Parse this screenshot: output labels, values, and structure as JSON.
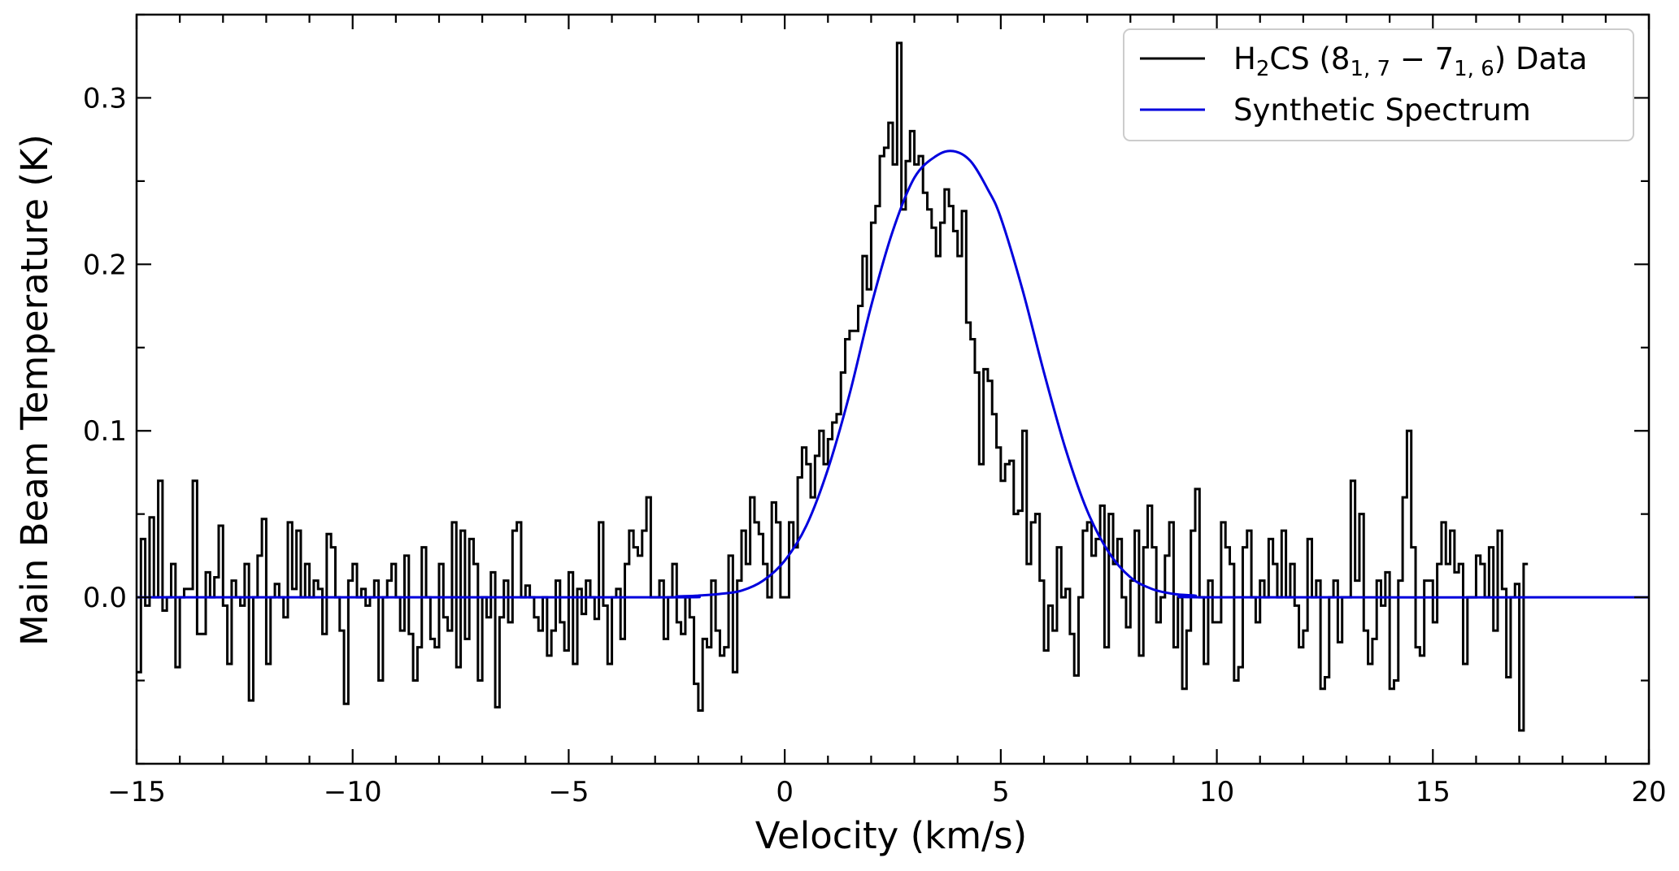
{
  "chart_data": {
    "type": "line",
    "title": "",
    "xlabel": "Velocity (km/s)",
    "ylabel": "Main Beam Temperature (K)",
    "xlim": [
      -15,
      20
    ],
    "ylim": [
      -0.1,
      0.35
    ],
    "xticks": [
      -15,
      -10,
      -5,
      0,
      5,
      10,
      15,
      20
    ],
    "xtick_labels": [
      "−15",
      "−10",
      "−5",
      "0",
      "5",
      "10",
      "15",
      "20"
    ],
    "yticks": [
      0.0,
      0.1,
      0.2,
      0.3
    ],
    "ytick_labels": [
      "0.0",
      "0.1",
      "0.2",
      "0.3"
    ],
    "x_minor_step": 1,
    "y_minor_step": 0.05,
    "grid": false,
    "legend_position": "top-right",
    "series": [
      {
        "name": "H2CS (8_{1,7} − 7_{1,6}) Data",
        "legend": {
          "base": "H",
          "sub1": "2",
          "mid": "CS (8",
          "sub2": "1, 7",
          "dash": " − 7",
          "sub3": "1, 6",
          "end": ") Data"
        },
        "style": "step",
        "color": "#000000",
        "x_start": -15.0,
        "x_step": 0.1,
        "values": [
          -0.045,
          0.035,
          -0.005,
          0.048,
          0.0,
          0.07,
          -0.008,
          0.0,
          0.02,
          -0.042,
          0.0,
          0.005,
          0.005,
          0.07,
          -0.022,
          -0.022,
          0.015,
          0.0,
          0.012,
          0.043,
          -0.005,
          -0.04,
          0.01,
          0.0,
          -0.005,
          0.02,
          -0.062,
          0.0,
          0.025,
          0.047,
          -0.04,
          0.0,
          0.008,
          0.0,
          -0.012,
          0.045,
          0.005,
          0.04,
          0.0,
          0.02,
          0.0,
          0.01,
          0.005,
          -0.022,
          0.038,
          0.03,
          0.0,
          -0.02,
          -0.064,
          0.01,
          0.02,
          0.0,
          0.005,
          -0.005,
          0.0,
          0.01,
          -0.05,
          0.0,
          0.01,
          0.02,
          0.0,
          -0.02,
          0.025,
          -0.022,
          -0.05,
          -0.03,
          0.03,
          0.0,
          -0.025,
          -0.03,
          0.02,
          -0.012,
          -0.02,
          0.045,
          -0.042,
          0.04,
          -0.025,
          0.035,
          0.02,
          -0.05,
          0.0,
          -0.012,
          0.015,
          -0.066,
          -0.012,
          0.01,
          -0.015,
          0.04,
          0.045,
          0.0,
          0.007,
          0.0,
          -0.012,
          -0.02,
          0.0,
          -0.035,
          -0.02,
          0.01,
          -0.015,
          -0.032,
          0.015,
          -0.04,
          0.005,
          -0.01,
          0.01,
          0.0,
          -0.013,
          0.045,
          -0.005,
          -0.04,
          0.0,
          0.005,
          -0.025,
          0.02,
          0.04,
          0.03,
          0.025,
          0.04,
          0.06,
          0.0,
          0.0,
          0.01,
          -0.025,
          0.0,
          0.02,
          -0.015,
          -0.022,
          0.0,
          -0.012,
          -0.052,
          -0.068,
          -0.025,
          -0.03,
          0.01,
          -0.02,
          -0.035,
          -0.03,
          0.025,
          -0.045,
          0.01,
          0.04,
          0.02,
          0.06,
          0.045,
          0.038,
          0.02,
          0.0,
          0.057,
          0.045,
          0.0,
          0.0,
          0.045,
          0.03,
          0.072,
          0.09,
          0.08,
          0.06,
          0.085,
          0.1,
          0.08,
          0.095,
          0.105,
          0.11,
          0.135,
          0.155,
          0.16,
          0.16,
          0.175,
          0.205,
          0.185,
          0.225,
          0.235,
          0.265,
          0.27,
          0.285,
          0.26,
          0.333,
          0.233,
          0.262,
          0.28,
          0.26,
          0.265,
          0.243,
          0.233,
          0.222,
          0.205,
          0.225,
          0.245,
          0.235,
          0.22,
          0.205,
          0.232,
          0.165,
          0.155,
          0.135,
          0.08,
          0.137,
          0.13,
          0.11,
          0.09,
          0.07,
          0.08,
          0.082,
          0.05,
          0.052,
          0.1,
          0.02,
          0.045,
          0.05,
          0.01,
          -0.032,
          -0.005,
          -0.02,
          0.03,
          0.0,
          0.005,
          -0.022,
          -0.047,
          0.0,
          0.04,
          0.045,
          0.025,
          0.035,
          0.055,
          -0.03,
          0.05,
          0.02,
          0.035,
          0.0,
          -0.018,
          0.01,
          0.04,
          -0.035,
          0.03,
          0.055,
          0.03,
          -0.015,
          0.0,
          0.025,
          0.045,
          -0.03,
          0.0,
          -0.055,
          -0.02,
          0.04,
          0.065,
          0.0,
          -0.04,
          0.01,
          -0.015,
          -0.015,
          0.045,
          0.03,
          0.02,
          -0.05,
          -0.042,
          0.03,
          0.04,
          0.0,
          -0.015,
          0.01,
          0.0,
          0.035,
          0.02,
          0.0,
          0.04,
          0.0,
          0.02,
          -0.005,
          -0.03,
          -0.02,
          0.035,
          0.0,
          0.01,
          -0.055,
          -0.048,
          0.0,
          0.01,
          -0.027,
          0.0,
          0.0,
          0.07,
          0.01,
          0.05,
          -0.02,
          -0.04,
          -0.025,
          0.01,
          -0.005,
          0.015,
          -0.055,
          -0.05,
          0.01,
          0.06,
          0.1,
          0.03,
          -0.03,
          -0.035,
          0.01,
          0.01,
          -0.015,
          0.02,
          0.045,
          0.02,
          0.04,
          0.015,
          0.02,
          -0.04,
          0.0,
          0.0,
          0.025,
          0.02,
          0.0,
          0.03,
          -0.02,
          0.04,
          0.005,
          -0.048,
          0.0,
          0.008,
          -0.08,
          0.02
        ]
      },
      {
        "name": "Synthetic Spectrum",
        "style": "line",
        "color": "#0000dd",
        "x": [
          -15,
          -3,
          -2.5,
          -2,
          -1.5,
          -1,
          -0.5,
          0,
          0.5,
          1,
          1.5,
          2,
          2.5,
          3,
          3.5,
          3.9,
          4.3,
          4.7,
          5,
          5.5,
          6,
          6.5,
          7,
          7.5,
          8,
          8.5,
          9,
          9.5,
          10,
          20
        ],
        "values": [
          0.0,
          0.0,
          0.0005,
          0.001,
          0.002,
          0.004,
          0.01,
          0.022,
          0.043,
          0.077,
          0.122,
          0.175,
          0.22,
          0.252,
          0.265,
          0.268,
          0.262,
          0.245,
          0.228,
          0.185,
          0.135,
          0.089,
          0.052,
          0.027,
          0.012,
          0.005,
          0.002,
          0.001,
          0.0,
          0.0
        ]
      }
    ]
  }
}
